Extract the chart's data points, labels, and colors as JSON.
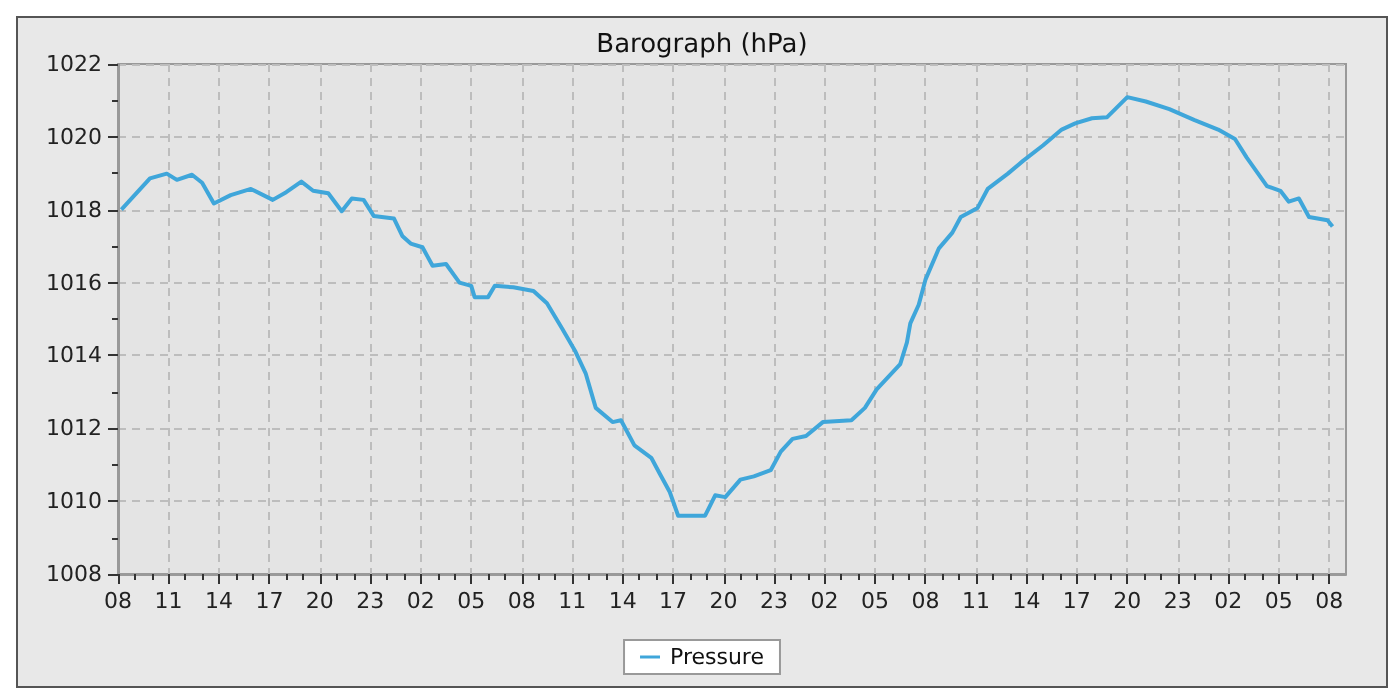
{
  "chart_data": {
    "type": "line",
    "title": "Barograph (hPa)",
    "x": [
      "--01-01T08:12",
      "--01-01T09:54",
      "--01-01T10:54",
      "--01-01T11:30",
      "--01-01T12:24",
      "--01-01T13:00",
      "--01-01T13:42",
      "--01-01T14:42",
      "--01-01T15:54",
      "--01-01T17:12",
      "--01-01T18:00",
      "--01-01T18:54",
      "--01-01T19:36",
      "--01-01T20:30",
      "--01-01T21:18",
      "--01-01T21:54",
      "--01-01T22:36",
      "--01-01T23:12",
      "--01-02T00:24",
      "--01-02T00:54",
      "--01-02T01:24",
      "--01-02T02:06",
      "--01-02T02:42",
      "--01-02T03:30",
      "--01-02T04:18",
      "--01-02T05:00",
      "--01-02T05:12",
      "--01-02T06:00",
      "--01-02T06:24",
      "--01-02T07:30",
      "--01-02T08:42",
      "--01-02T09:30",
      "--01-02T10:24",
      "--01-02T11:12",
      "--01-02T11:48",
      "--01-02T12:24",
      "--01-02T13:24",
      "--01-02T13:54",
      "--01-02T14:42",
      "--01-02T15:42",
      "--01-02T16:12",
      "--01-02T16:48",
      "--01-02T17:18",
      "--01-02T18:54",
      "--01-02T19:30",
      "--01-02T20:06",
      "--01-02T21:00",
      "--01-02T21:48",
      "--01-02T22:48",
      "--01-02T23:24",
      "--01-03T00:06",
      "--01-03T00:54",
      "--01-03T01:54",
      "--01-03T03:36",
      "--01-03T04:24",
      "--01-03T05:06",
      "--01-03T06:30",
      "--01-03T06:54",
      "--01-03T07:06",
      "--01-03T07:36",
      "--01-03T08:00",
      "--01-03T08:48",
      "--01-03T09:36",
      "--01-03T10:06",
      "--01-03T11:06",
      "--01-03T11:42",
      "--01-03T12:54",
      "--01-03T13:48",
      "--01-03T15:00",
      "--01-03T16:06",
      "--01-03T16:54",
      "--01-03T17:54",
      "--01-03T18:48",
      "--01-03T20:00",
      "--01-03T21:06",
      "--01-03T22:30",
      "--01-04T00:00",
      "--01-04T01:24",
      "--01-04T02:24",
      "--01-04T03:06",
      "--01-04T04:18",
      "--01-04T05:06",
      "--01-04T05:36",
      "--01-04T06:12",
      "--01-04T06:48",
      "--01-04T07:54",
      "--01-04T08:12"
    ],
    "series": [
      {
        "name": "Pressure",
        "color": "#3fa6da",
        "values": [
          1018.0,
          1018.86,
          1018.99,
          1018.82,
          1018.96,
          1018.74,
          1018.17,
          1018.4,
          1018.57,
          1018.27,
          1018.48,
          1018.77,
          1018.52,
          1018.45,
          1017.96,
          1018.31,
          1018.27,
          1017.83,
          1017.76,
          1017.28,
          1017.07,
          1016.97,
          1016.46,
          1016.51,
          1016.0,
          1015.91,
          1015.6,
          1015.6,
          1015.91,
          1015.87,
          1015.77,
          1015.43,
          1014.74,
          1014.1,
          1013.51,
          1012.56,
          1012.17,
          1012.22,
          1011.53,
          1011.19,
          1010.76,
          1010.25,
          1009.6,
          1009.6,
          1010.16,
          1010.11,
          1010.59,
          1010.68,
          1010.85,
          1011.36,
          1011.71,
          1011.79,
          1012.17,
          1012.22,
          1012.56,
          1013.07,
          1013.76,
          1014.36,
          1014.88,
          1015.39,
          1016.08,
          1016.94,
          1017.37,
          1017.8,
          1018.05,
          1018.57,
          1018.99,
          1019.34,
          1019.77,
          1020.2,
          1020.37,
          1020.51,
          1020.54,
          1021.09,
          1020.97,
          1020.76,
          1020.46,
          1020.2,
          1019.94,
          1019.43,
          1018.65,
          1018.52,
          1018.22,
          1018.31,
          1017.8,
          1017.71,
          1017.54
        ]
      }
    ],
    "xlim": [
      "--01-01T08:00",
      "--01-04T09:00"
    ],
    "xticks": [
      {
        "value": "--01-01T08:00",
        "label": "08"
      },
      {
        "value": "--01-01T09:00",
        "label": null
      },
      {
        "value": "--01-01T10:00",
        "label": null
      },
      {
        "value": "--01-01T11:00",
        "label": "11"
      },
      {
        "value": "--01-01T12:00",
        "label": null
      },
      {
        "value": "--01-01T13:00",
        "label": null
      },
      {
        "value": "--01-01T14:00",
        "label": "14"
      },
      {
        "value": "--01-01T15:00",
        "label": null
      },
      {
        "value": "--01-01T16:00",
        "label": null
      },
      {
        "value": "--01-01T17:00",
        "label": "17"
      },
      {
        "value": "--01-01T18:00",
        "label": null
      },
      {
        "value": "--01-01T19:00",
        "label": null
      },
      {
        "value": "--01-01T20:00",
        "label": "20"
      },
      {
        "value": "--01-01T21:00",
        "label": null
      },
      {
        "value": "--01-01T22:00",
        "label": null
      },
      {
        "value": "--01-01T23:00",
        "label": "23"
      },
      {
        "value": "--01-02T00:00",
        "label": null
      },
      {
        "value": "--01-02T01:00",
        "label": null
      },
      {
        "value": "--01-02T02:00",
        "label": "02"
      },
      {
        "value": "--01-02T03:00",
        "label": null
      },
      {
        "value": "--01-02T04:00",
        "label": null
      },
      {
        "value": "--01-02T05:00",
        "label": "05"
      },
      {
        "value": "--01-02T06:00",
        "label": null
      },
      {
        "value": "--01-02T07:00",
        "label": null
      },
      {
        "value": "--01-02T08:00",
        "label": "08"
      },
      {
        "value": "--01-02T09:00",
        "label": null
      },
      {
        "value": "--01-02T10:00",
        "label": null
      },
      {
        "value": "--01-02T11:00",
        "label": "11"
      },
      {
        "value": "--01-02T12:00",
        "label": null
      },
      {
        "value": "--01-02T13:00",
        "label": null
      },
      {
        "value": "--01-02T14:00",
        "label": "14"
      },
      {
        "value": "--01-02T15:00",
        "label": null
      },
      {
        "value": "--01-02T16:00",
        "label": null
      },
      {
        "value": "--01-02T17:00",
        "label": "17"
      },
      {
        "value": "--01-02T18:00",
        "label": null
      },
      {
        "value": "--01-02T19:00",
        "label": null
      },
      {
        "value": "--01-02T20:00",
        "label": "20"
      },
      {
        "value": "--01-02T21:00",
        "label": null
      },
      {
        "value": "--01-02T22:00",
        "label": null
      },
      {
        "value": "--01-02T23:00",
        "label": "23"
      },
      {
        "value": "--01-03T00:00",
        "label": null
      },
      {
        "value": "--01-03T01:00",
        "label": null
      },
      {
        "value": "--01-03T02:00",
        "label": "02"
      },
      {
        "value": "--01-03T03:00",
        "label": null
      },
      {
        "value": "--01-03T04:00",
        "label": null
      },
      {
        "value": "--01-03T05:00",
        "label": "05"
      },
      {
        "value": "--01-03T06:00",
        "label": null
      },
      {
        "value": "--01-03T07:00",
        "label": null
      },
      {
        "value": "--01-03T08:00",
        "label": "08"
      },
      {
        "value": "--01-03T09:00",
        "label": null
      },
      {
        "value": "--01-03T10:00",
        "label": null
      },
      {
        "value": "--01-03T11:00",
        "label": "11"
      },
      {
        "value": "--01-03T12:00",
        "label": null
      },
      {
        "value": "--01-03T13:00",
        "label": null
      },
      {
        "value": "--01-03T14:00",
        "label": "14"
      },
      {
        "value": "--01-03T15:00",
        "label": null
      },
      {
        "value": "--01-03T16:00",
        "label": null
      },
      {
        "value": "--01-03T17:00",
        "label": "17"
      },
      {
        "value": "--01-03T18:00",
        "label": null
      },
      {
        "value": "--01-03T19:00",
        "label": null
      },
      {
        "value": "--01-03T20:00",
        "label": "20"
      },
      {
        "value": "--01-03T21:00",
        "label": null
      },
      {
        "value": "--01-03T22:00",
        "label": null
      },
      {
        "value": "--01-03T23:00",
        "label": "23"
      },
      {
        "value": "--01-04T00:00",
        "label": null
      },
      {
        "value": "--01-04T01:00",
        "label": null
      },
      {
        "value": "--01-04T02:00",
        "label": "02"
      },
      {
        "value": "--01-04T03:00",
        "label": null
      },
      {
        "value": "--01-04T04:00",
        "label": null
      },
      {
        "value": "--01-04T05:00",
        "label": "05"
      },
      {
        "value": "--01-04T06:00",
        "label": null
      },
      {
        "value": "--01-04T07:00",
        "label": null
      },
      {
        "value": "--01-04T08:00",
        "label": "08"
      }
    ],
    "ylim": [
      1008,
      1022
    ],
    "yticks": [
      1008,
      {
        "value": 1009,
        "label": null
      },
      1010,
      {
        "value": 1011,
        "label": null
      },
      1012,
      {
        "value": 1013,
        "label": null
      },
      1014,
      {
        "value": 1015,
        "label": null
      },
      1016,
      {
        "value": 1017,
        "label": null
      },
      1018,
      {
        "value": 1019,
        "label": null
      },
      1020,
      {
        "value": 1021,
        "label": null
      },
      1022
    ],
    "grid": true,
    "legend": "bottom",
    "marker": "none",
    "line_style": "solid"
  }
}
